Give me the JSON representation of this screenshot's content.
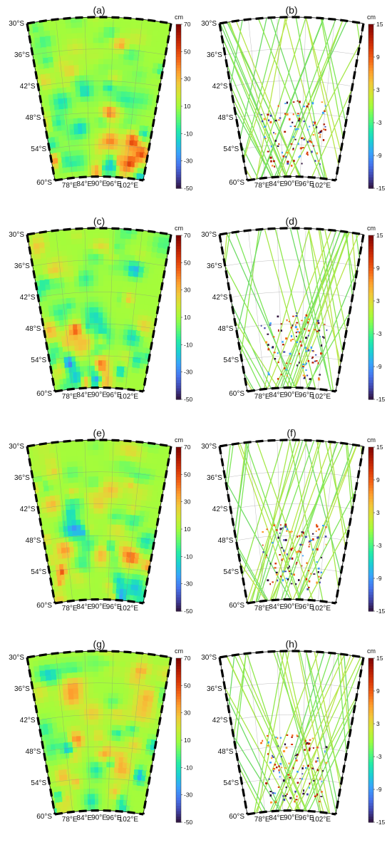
{
  "panels": [
    {
      "label": "(a)",
      "kind": "field",
      "seed": 11
    },
    {
      "label": "(b)",
      "kind": "tracks",
      "seed": 21
    },
    {
      "label": "(c)",
      "kind": "field",
      "seed": 12
    },
    {
      "label": "(d)",
      "kind": "tracks",
      "seed": 22
    },
    {
      "label": "(e)",
      "kind": "field",
      "seed": 13
    },
    {
      "label": "(f)",
      "kind": "tracks",
      "seed": 23
    },
    {
      "label": "(g)",
      "kind": "field",
      "seed": 14
    },
    {
      "label": "(h)",
      "kind": "tracks",
      "seed": 24
    }
  ],
  "lat_labels": [
    "30°S",
    "36°S",
    "42°S",
    "48°S",
    "54°S",
    "60°S"
  ],
  "lon_labels": [
    "78°E",
    "84°E",
    "90°E",
    "96°E",
    "102°E"
  ],
  "colorbars": {
    "field": {
      "unit": "cm",
      "ticks": [
        "70",
        "50",
        "30",
        "10",
        "-10",
        "-30",
        "-50"
      ]
    },
    "tracks": {
      "unit": "cm",
      "ticks": [
        "15",
        "9",
        "3",
        "-3",
        "-9",
        "-15"
      ]
    }
  },
  "colormap": [
    "#30123b",
    "#4145ab",
    "#4675ed",
    "#39a2fc",
    "#1bcfd4",
    "#24eca6",
    "#61fc6c",
    "#a4fc3b",
    "#d1e834",
    "#f3c63a",
    "#fe9b2d",
    "#f36315",
    "#d93806",
    "#b11901",
    "#7a0402"
  ]
}
